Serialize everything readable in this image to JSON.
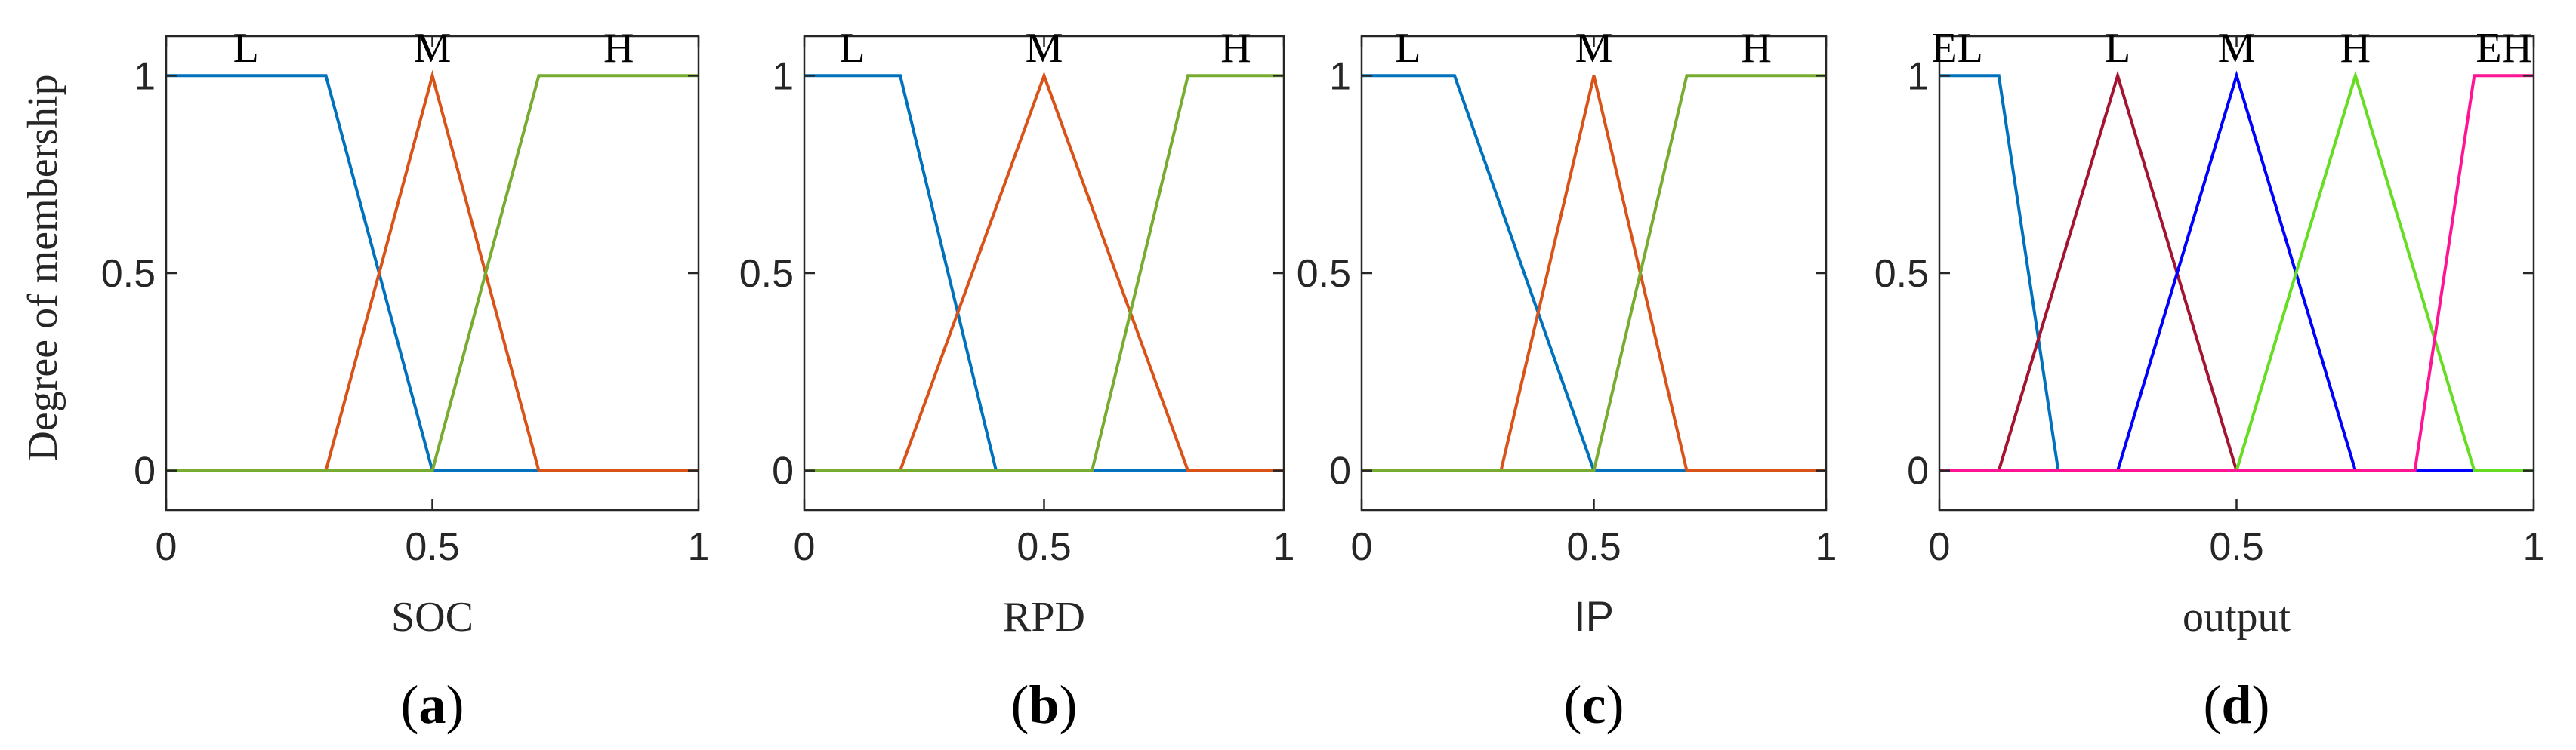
{
  "chart_data": [
    {
      "type": "line",
      "panel_label": "a",
      "xlabel": "SOC",
      "ylabel": "Degree of membership",
      "xlim": [
        0,
        1
      ],
      "ylim": [
        -0.1,
        1.1
      ],
      "xticks": [
        "0",
        "0.5",
        "1"
      ],
      "yticks": [
        "0",
        "0.5",
        "1"
      ],
      "set_labels": [
        {
          "text": "L",
          "x": 0.15
        },
        {
          "text": "M",
          "x": 0.5
        },
        {
          "text": "H",
          "x": 0.85
        }
      ],
      "series": [
        {
          "name": "L",
          "color": "#0072BD",
          "x": [
            0,
            0.3,
            0.5,
            1
          ],
          "y": [
            1,
            1,
            0,
            0
          ]
        },
        {
          "name": "M",
          "color": "#D95319",
          "x": [
            0,
            0.3,
            0.5,
            0.7,
            1
          ],
          "y": [
            0,
            0,
            1,
            0,
            0
          ]
        },
        {
          "name": "H",
          "color": "#77AC30",
          "x": [
            0,
            0.5,
            0.7,
            1
          ],
          "y": [
            0,
            0,
            1,
            1
          ]
        }
      ]
    },
    {
      "type": "line",
      "panel_label": "b",
      "xlabel": "RPD",
      "ylabel": "",
      "xlim": [
        0,
        1
      ],
      "ylim": [
        -0.1,
        1.1
      ],
      "xticks": [
        "0",
        "0.5",
        "1"
      ],
      "yticks": [
        "0",
        "0.5",
        "1"
      ],
      "set_labels": [
        {
          "text": "L",
          "x": 0.1
        },
        {
          "text": "M",
          "x": 0.5
        },
        {
          "text": "H",
          "x": 0.9
        }
      ],
      "series": [
        {
          "name": "L",
          "color": "#0072BD",
          "x": [
            0,
            0.2,
            0.4,
            1
          ],
          "y": [
            1,
            1,
            0,
            0
          ]
        },
        {
          "name": "M",
          "color": "#D95319",
          "x": [
            0,
            0.2,
            0.5,
            0.8,
            1
          ],
          "y": [
            0,
            0,
            1,
            0,
            0
          ]
        },
        {
          "name": "H",
          "color": "#77AC30",
          "x": [
            0,
            0.6,
            0.8,
            1
          ],
          "y": [
            0,
            0,
            1,
            1
          ]
        }
      ]
    },
    {
      "type": "line",
      "panel_label": "c",
      "xlabel": "IP",
      "ylabel": "",
      "xlim": [
        0,
        1
      ],
      "ylim": [
        -0.1,
        1.1
      ],
      "xticks": [
        "0",
        "0.5",
        "1"
      ],
      "yticks": [
        "0",
        "0.5",
        "1"
      ],
      "set_labels": [
        {
          "text": "L",
          "x": 0.1
        },
        {
          "text": "M",
          "x": 0.5
        },
        {
          "text": "H",
          "x": 0.85
        }
      ],
      "series": [
        {
          "name": "L",
          "color": "#0072BD",
          "x": [
            0,
            0.2,
            0.5,
            1
          ],
          "y": [
            1,
            1,
            0,
            0
          ]
        },
        {
          "name": "M",
          "color": "#D95319",
          "x": [
            0,
            0.3,
            0.5,
            0.7,
            1
          ],
          "y": [
            0,
            0,
            1,
            0,
            0
          ]
        },
        {
          "name": "H",
          "color": "#77AC30",
          "x": [
            0,
            0.5,
            0.7,
            1
          ],
          "y": [
            0,
            0,
            1,
            1
          ]
        }
      ]
    },
    {
      "type": "line",
      "panel_label": "d",
      "xlabel": "output",
      "ylabel": "",
      "xlim": [
        0,
        1
      ],
      "ylim": [
        -0.1,
        1.1
      ],
      "xticks": [
        "0",
        "0.5",
        "1"
      ],
      "yticks": [
        "0",
        "0.5",
        "1"
      ],
      "set_labels": [
        {
          "text": "EL",
          "x": 0.03
        },
        {
          "text": "L",
          "x": 0.3
        },
        {
          "text": "M",
          "x": 0.5
        },
        {
          "text": "H",
          "x": 0.7
        },
        {
          "text": "EH",
          "x": 0.95
        }
      ],
      "series": [
        {
          "name": "EL",
          "color": "#0072BD",
          "x": [
            0,
            0.1,
            0.2,
            1
          ],
          "y": [
            1,
            1,
            0,
            0
          ]
        },
        {
          "name": "L",
          "color": "#A2142F",
          "x": [
            0,
            0.1,
            0.3,
            0.5,
            1
          ],
          "y": [
            0,
            0,
            1,
            0,
            0
          ]
        },
        {
          "name": "M",
          "color": "#0000FF",
          "x": [
            0,
            0.3,
            0.5,
            0.7,
            1
          ],
          "y": [
            0,
            0,
            1,
            0,
            0
          ]
        },
        {
          "name": "H",
          "color": "#66DD22",
          "x": [
            0,
            0.5,
            0.7,
            0.9,
            1
          ],
          "y": [
            0,
            0,
            1,
            0,
            0
          ]
        },
        {
          "name": "EH",
          "color": "#FF1493",
          "x": [
            0,
            0.8,
            0.9,
            1
          ],
          "y": [
            0,
            0,
            1,
            1
          ]
        }
      ]
    }
  ]
}
